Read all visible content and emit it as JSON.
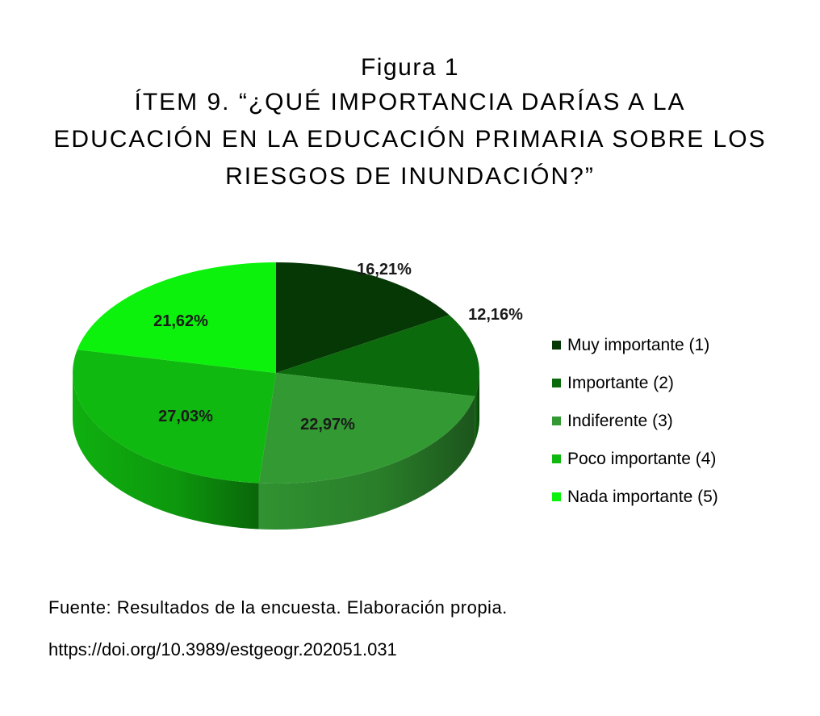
{
  "figure": {
    "label": "Figura 1",
    "title_lines": [
      "Ítem 9. “¿Qué importancia darías a la",
      "educación en la educación primaria sobre los",
      "riesgos de inundación?”"
    ]
  },
  "chart_data": {
    "type": "pie",
    "style": "3d",
    "categories": [
      "Muy importante (1)",
      "Importante (2)",
      "Indiferente (3)",
      "Poco importante (4)",
      "Nada importante (5)"
    ],
    "values": [
      16.21,
      12.16,
      22.97,
      27.03,
      21.62
    ],
    "value_labels": [
      "16,21%",
      "12,16%",
      "22,97%",
      "27,03%",
      "21,62%"
    ],
    "colors": [
      "#063806",
      "#0b6a0b",
      "#339a33",
      "#10b910",
      "#0cf20c"
    ],
    "legend_position": "right"
  },
  "footer": {
    "source": "Fuente: Resultados de la encuesta. Elaboración propia.",
    "doi": "https://doi.org/10.3989/estgeogr.202051.031"
  }
}
